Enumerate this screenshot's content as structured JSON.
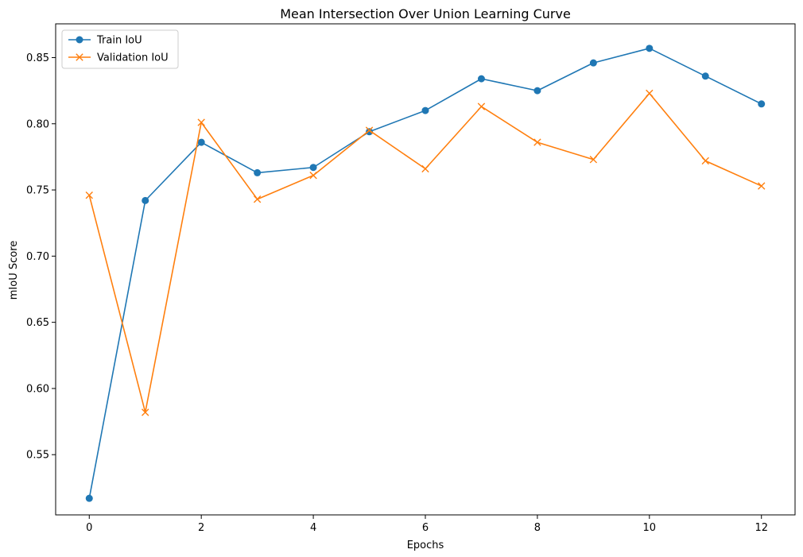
{
  "chart_data": {
    "type": "line",
    "title": "Mean Intersection Over Union Learning Curve",
    "xlabel": "Epochs",
    "ylabel": "mIoU Score",
    "x": [
      0,
      1,
      2,
      3,
      4,
      5,
      6,
      7,
      8,
      9,
      10,
      11,
      12
    ],
    "xlim": [
      -0.6,
      12.6
    ],
    "ylim": [
      0.5045,
      0.8755
    ],
    "xticks": [
      0,
      2,
      4,
      6,
      8,
      10,
      12
    ],
    "yticks": [
      0.55,
      0.6,
      0.65,
      0.7,
      0.75,
      0.8,
      0.85
    ],
    "ytick_labels": [
      "0.55",
      "0.60",
      "0.65",
      "0.70",
      "0.75",
      "0.80",
      "0.85"
    ],
    "grid": false,
    "legend_position": "top-left",
    "series": [
      {
        "name": "Train IoU",
        "color": "#1f77b4",
        "marker": "circle",
        "values": [
          0.517,
          0.742,
          0.786,
          0.763,
          0.767,
          0.794,
          0.81,
          0.834,
          0.825,
          0.846,
          0.857,
          0.836,
          0.815
        ]
      },
      {
        "name": "Validation IoU",
        "color": "#ff7f0e",
        "marker": "x",
        "values": [
          0.746,
          0.582,
          0.801,
          0.743,
          0.761,
          0.795,
          0.766,
          0.813,
          0.786,
          0.773,
          0.823,
          0.772,
          0.753
        ]
      }
    ]
  }
}
